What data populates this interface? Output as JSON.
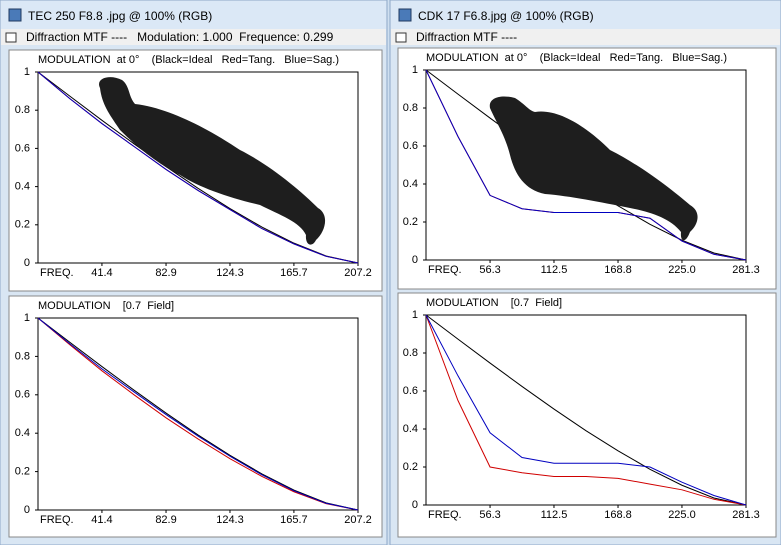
{
  "windows": [
    {
      "title": "TEC 250 F8.8 .jpg @ 100% (RGB)",
      "toolbar": "Diffraction MTF ----   Modulation: 1.000  Frequence: 0.299",
      "charts": [
        {
          "title": "MODULATION  at 0°    (Black=Ideal   Red=Tang.   Blue=Sag.)",
          "xlabel": "FREQ.",
          "xlim": [
            0,
            207.2
          ],
          "xticks": [
            41.4,
            82.9,
            124.3,
            165.7,
            207.2
          ],
          "ylim": [
            0,
            1
          ],
          "yticks": [
            0,
            0.2,
            0.4,
            0.6,
            0.8,
            1
          ],
          "x": [
            0,
            20.7,
            41.4,
            62.2,
            82.9,
            103.6,
            124.3,
            145.0,
            165.7,
            186.5,
            207.2
          ],
          "series": [
            {
              "color": "#000000",
              "values": [
                1,
                0.873,
                0.747,
                0.624,
                0.505,
                0.391,
                0.285,
                0.188,
                0.104,
                0.037,
                0
              ]
            },
            {
              "color": "#d00000",
              "values": [
                1,
                0.86,
                0.73,
                0.61,
                0.49,
                0.38,
                0.28,
                0.18,
                0.1,
                0.035,
                0
              ]
            },
            {
              "color": "#0000c0",
              "values": [
                1,
                0.86,
                0.73,
                0.61,
                0.49,
                0.38,
                0.28,
                0.18,
                0.1,
                0.035,
                0
              ]
            }
          ]
        },
        {
          "title": "MODULATION    [0.7  Field]",
          "xlabel": "FREQ.",
          "xlim": [
            0,
            207.2
          ],
          "xticks": [
            41.4,
            82.9,
            124.3,
            165.7,
            207.2
          ],
          "ylim": [
            0,
            1
          ],
          "yticks": [
            0,
            0.2,
            0.4,
            0.6,
            0.8,
            1
          ],
          "x": [
            0,
            20.7,
            41.4,
            62.2,
            82.9,
            103.6,
            124.3,
            145.0,
            165.7,
            186.5,
            207.2
          ],
          "series": [
            {
              "color": "#000000",
              "values": [
                1,
                0.873,
                0.747,
                0.624,
                0.505,
                0.391,
                0.285,
                0.188,
                0.104,
                0.037,
                0
              ]
            },
            {
              "color": "#d00000",
              "values": [
                1,
                0.86,
                0.725,
                0.6,
                0.48,
                0.37,
                0.267,
                0.175,
                0.095,
                0.033,
                0
              ]
            },
            {
              "color": "#0000c0",
              "values": [
                1,
                0.865,
                0.735,
                0.615,
                0.497,
                0.385,
                0.28,
                0.183,
                0.1,
                0.035,
                0
              ]
            }
          ]
        }
      ]
    },
    {
      "title": "CDK 17 F6.8.jpg @ 100% (RGB)",
      "toolbar": "Diffraction MTF ----",
      "charts": [
        {
          "title": "MODULATION  at 0°    (Black=Ideal   Red=Tang.   Blue=Sag.)",
          "xlabel": "FREQ.",
          "xlim": [
            0,
            281.3
          ],
          "xticks": [
            56.3,
            112.5,
            168.8,
            {
              "value": 225,
              "label": "225.0"
            },
            281.3
          ],
          "ylim": [
            0,
            1
          ],
          "yticks": [
            0,
            0.2,
            0.4,
            0.6,
            0.8,
            1
          ],
          "x": [
            0,
            28.1,
            56.3,
            84.4,
            112.5,
            140.6,
            168.8,
            196.9,
            225.0,
            253.1,
            281.3
          ],
          "series": [
            {
              "color": "#000000",
              "values": [
                1,
                0.873,
                0.747,
                0.624,
                0.505,
                0.391,
                0.285,
                0.188,
                0.104,
                0.037,
                0
              ]
            },
            {
              "color": "#d00000",
              "values": [
                1,
                0.65,
                0.34,
                0.27,
                0.25,
                0.25,
                0.25,
                0.22,
                0.1,
                0.03,
                0
              ]
            },
            {
              "color": "#0000c0",
              "values": [
                1,
                0.65,
                0.34,
                0.27,
                0.25,
                0.25,
                0.25,
                0.22,
                0.1,
                0.03,
                0
              ]
            }
          ]
        },
        {
          "title": "MODULATION    [0.7  Field]",
          "xlabel": "FREQ.",
          "xlim": [
            0,
            281.3
          ],
          "xticks": [
            56.3,
            112.5,
            168.8,
            {
              "value": 225,
              "label": "225.0"
            },
            281.3
          ],
          "ylim": [
            0,
            1
          ],
          "yticks": [
            0,
            0.2,
            0.4,
            0.6,
            0.8,
            1
          ],
          "x": [
            0,
            28.1,
            56.3,
            84.4,
            112.5,
            140.6,
            168.8,
            196.9,
            225.0,
            253.1,
            281.3
          ],
          "series": [
            {
              "color": "#000000",
              "values": [
                1,
                0.873,
                0.747,
                0.624,
                0.505,
                0.391,
                0.285,
                0.188,
                0.104,
                0.037,
                0
              ]
            },
            {
              "color": "#d00000",
              "values": [
                1,
                0.55,
                0.2,
                0.17,
                0.15,
                0.15,
                0.14,
                0.11,
                0.08,
                0.03,
                0
              ]
            },
            {
              "color": "#0000c0",
              "values": [
                1,
                0.68,
                0.38,
                0.25,
                0.22,
                0.22,
                0.22,
                0.2,
                0.12,
                0.05,
                0
              ]
            }
          ]
        }
      ]
    }
  ]
}
